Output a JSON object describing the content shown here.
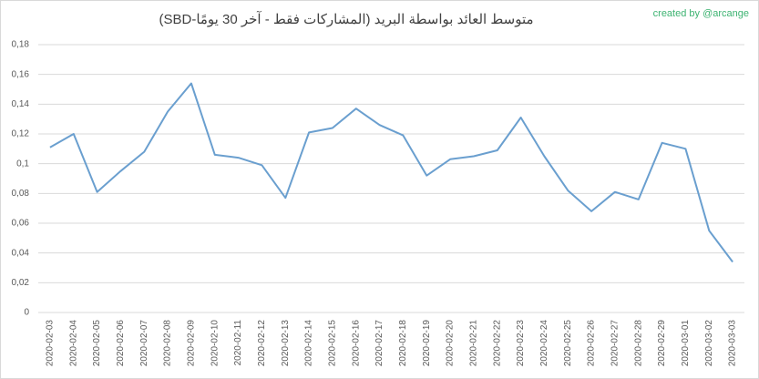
{
  "chart_data": {
    "type": "line",
    "title": "متوسط العائد بواسطة البريد (المشاركات فقط - آخر 30 يومًا-SBD)",
    "annotation": "created by @arcange",
    "categories": [
      "2020-02-03",
      "2020-02-04",
      "2020-02-05",
      "2020-02-06",
      "2020-02-07",
      "2020-02-08",
      "2020-02-09",
      "2020-02-10",
      "2020-02-11",
      "2020-02-12",
      "2020-02-13",
      "2020-02-14",
      "2020-02-15",
      "2020-02-16",
      "2020-02-17",
      "2020-02-18",
      "2020-02-19",
      "2020-02-20",
      "2020-02-21",
      "2020-02-22",
      "2020-02-23",
      "2020-02-24",
      "2020-02-25",
      "2020-02-26",
      "2020-02-27",
      "2020-02-28",
      "2020-02-29",
      "2020-03-01",
      "2020-03-02",
      "2020-03-03"
    ],
    "series": [
      {
        "color": "#6a9fcf",
        "values": [
          0.111,
          0.12,
          0.081,
          0.095,
          0.108,
          0.135,
          0.154,
          0.106,
          0.104,
          0.099,
          0.077,
          0.121,
          0.124,
          0.137,
          0.126,
          0.119,
          0.092,
          0.103,
          0.105,
          0.109,
          0.131,
          0.105,
          0.082,
          0.068,
          0.081,
          0.076,
          0.114,
          0.11,
          0.055,
          0.034
        ]
      }
    ],
    "ylim": [
      0,
      0.18
    ],
    "yticks": [
      0,
      {
        "value": 0.02,
        "label": "0,02"
      },
      {
        "value": 0.04,
        "label": "0,04"
      },
      {
        "value": 0.06,
        "label": "0,06"
      },
      {
        "value": 0.08,
        "label": "0,08"
      },
      {
        "value": 0.1,
        "label": "0,1"
      },
      {
        "value": 0.12,
        "label": "0,12"
      },
      {
        "value": 0.14,
        "label": "0,14"
      },
      {
        "value": 0.16,
        "label": "0,16"
      },
      {
        "value": 0.18,
        "label": "0,18"
      }
    ],
    "grid": true
  }
}
